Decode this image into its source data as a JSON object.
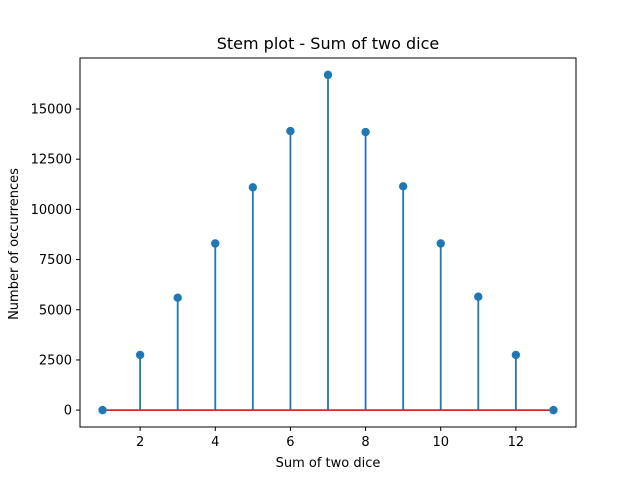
{
  "chart_data": {
    "type": "stem",
    "title": "Stem plot - Sum of two dice",
    "xlabel": "Sum of two dice",
    "ylabel": "Number of occurrences",
    "x": [
      1,
      2,
      3,
      4,
      5,
      6,
      7,
      8,
      9,
      10,
      11,
      12,
      13
    ],
    "values": [
      0,
      2750,
      5600,
      8300,
      11100,
      13900,
      16700,
      13850,
      11150,
      8300,
      5650,
      2750,
      0
    ],
    "xlim": [
      0.4,
      13.6
    ],
    "ylim": [
      -840,
      17540
    ],
    "xticks": [
      2,
      4,
      6,
      8,
      10,
      12
    ],
    "yticks": [
      0,
      2500,
      5000,
      7500,
      10000,
      12500,
      15000
    ],
    "ytick_labels": [
      "0",
      "2500",
      "5000",
      "7500",
      "10000",
      "12500",
      "15000"
    ],
    "grid": false,
    "colors": {
      "stem": "#1f77b4",
      "marker": "#1f77b4",
      "baseline": "#d62728",
      "axes": "#000000"
    }
  }
}
